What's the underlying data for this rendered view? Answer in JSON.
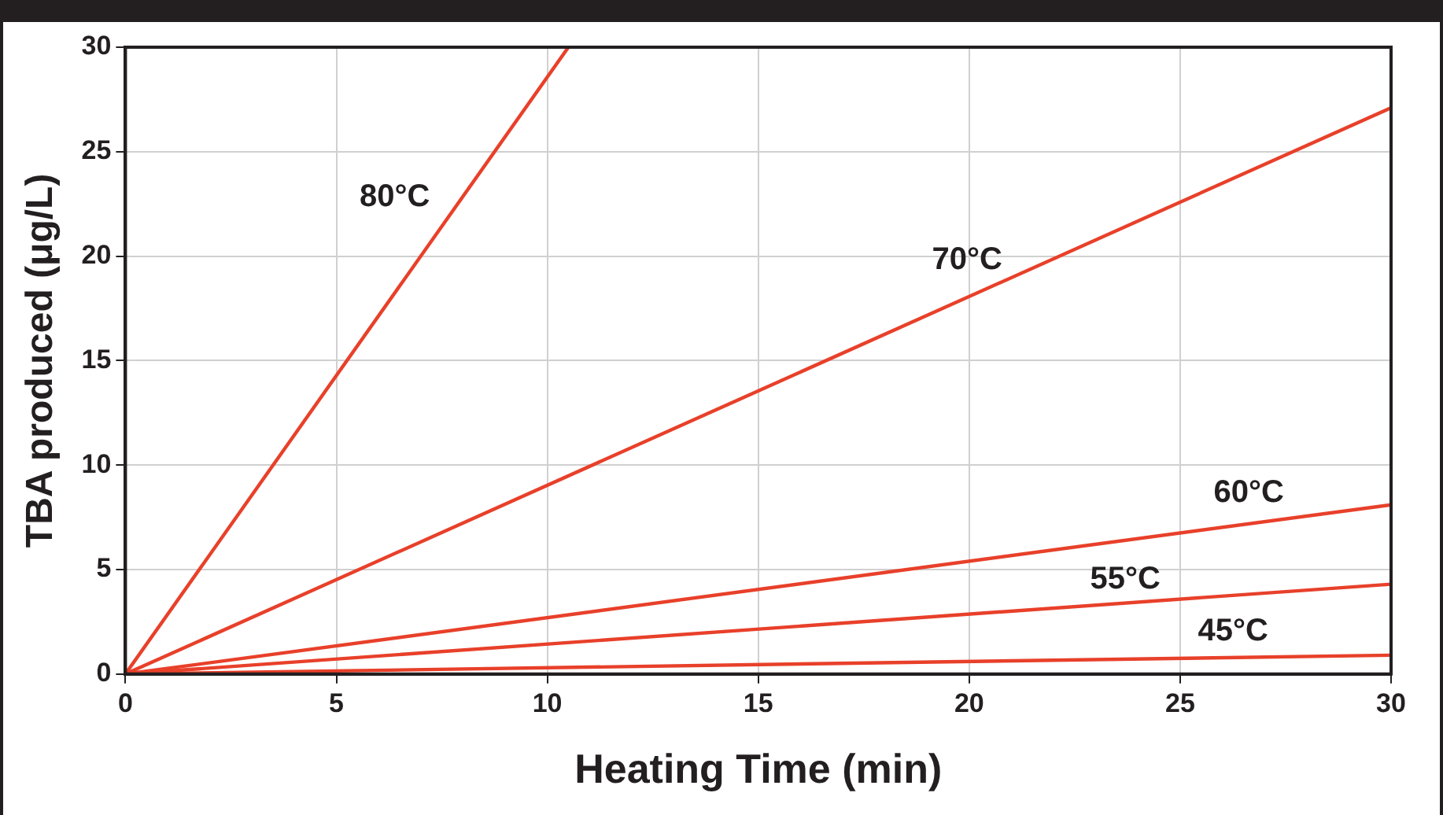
{
  "chart_data": {
    "type": "line",
    "xlabel": "Heating Time (min)",
    "ylabel": "TBA produced (μg/L)",
    "xlim": [
      0,
      30
    ],
    "xticks": [
      0,
      5,
      10,
      15,
      20,
      25,
      30
    ],
    "ylim": [
      0,
      30
    ],
    "yticks": [
      0,
      5,
      10,
      15,
      20,
      25,
      30
    ],
    "grid": true,
    "legend": false,
    "marker": "none",
    "line_style": "solid",
    "series": [
      {
        "name": "80°C",
        "color": "#e8402a",
        "x": [
          0,
          10.5
        ],
        "values": [
          0,
          30
        ]
      },
      {
        "name": "70°C",
        "color": "#e8402a",
        "x": [
          0,
          30
        ],
        "values": [
          0,
          27.1
        ]
      },
      {
        "name": "60°C",
        "color": "#e8402a",
        "x": [
          0,
          30
        ],
        "values": [
          0,
          8.1
        ]
      },
      {
        "name": "55°C",
        "color": "#e8402a",
        "x": [
          0,
          30
        ],
        "values": [
          0,
          4.3
        ]
      },
      {
        "name": "45°C",
        "color": "#e8402a",
        "x": [
          0,
          30
        ],
        "values": [
          0,
          0.9
        ]
      }
    ]
  }
}
